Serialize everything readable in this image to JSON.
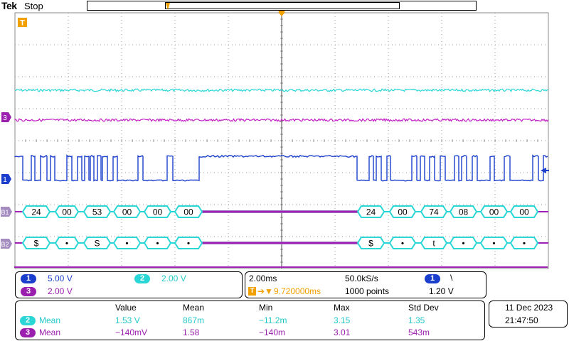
{
  "header": {
    "brand": "Tek",
    "run_state": "Stop"
  },
  "trigger_marker": "T",
  "channels": {
    "ch1": {
      "label": "1",
      "scale": "5.00 V",
      "color": "#1b3fcc"
    },
    "ch2": {
      "label": "2",
      "scale": "2.00 V",
      "color": "#2ad6d6"
    },
    "ch3": {
      "label": "3",
      "scale": "2.00 V",
      "color": "#9a1fae"
    }
  },
  "bus_labels": {
    "b1": "B1",
    "b2": "B2"
  },
  "bus1_packets": [
    "24",
    "00",
    "53",
    "00",
    "00",
    "00",
    "24",
    "00",
    "74",
    "08",
    "00",
    "00"
  ],
  "bus2_packets": [
    "$",
    "•",
    "S",
    "•",
    "•",
    "•",
    "$",
    "•",
    "t",
    "•",
    "•",
    "•"
  ],
  "horizontal": {
    "time_div": "2.00ms",
    "sample_rate": "50.0kS/s",
    "position": "9.720000ms",
    "record_length": "1000 points",
    "trigger_source": "1",
    "trigger_level": "1.20 V",
    "trigger_slope": "\\"
  },
  "measurements": {
    "headers": [
      "Value",
      "Mean",
      "Min",
      "Max",
      "Std Dev"
    ],
    "rows": [
      {
        "ch": "2",
        "label": "Mean",
        "values": [
          "1.53 V",
          "867m",
          "−11.2m",
          "3.15",
          "1.35"
        ]
      },
      {
        "ch": "3",
        "label": "Mean",
        "values": [
          "−140mV",
          "1.58",
          "−140m",
          "3.01",
          "543m"
        ]
      }
    ]
  },
  "datetime": {
    "date": "11 Dec  2023",
    "time": "21:47:50"
  }
}
